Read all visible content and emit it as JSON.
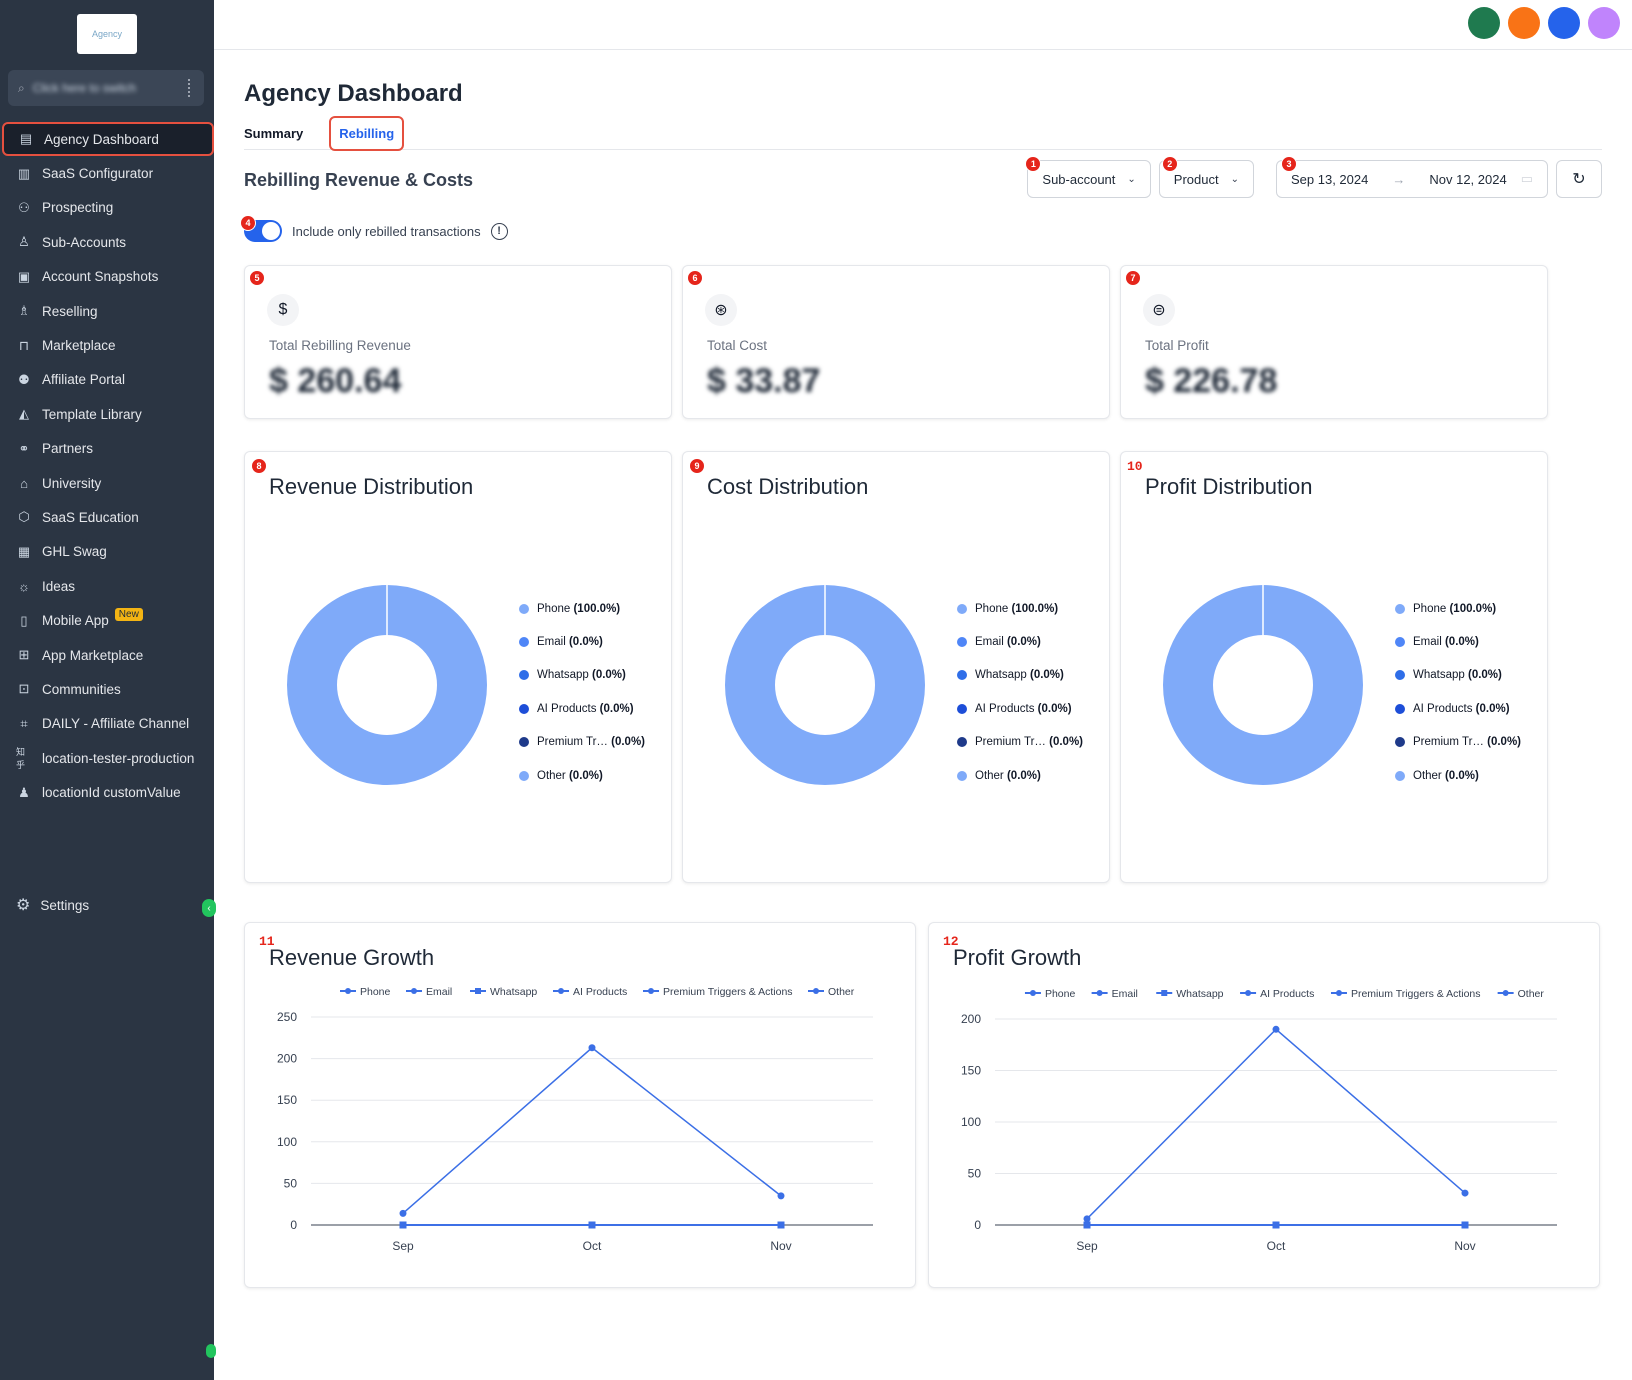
{
  "sidebar": {
    "logo_text": "Agency",
    "switcher_text": "Click here to switch",
    "items": [
      {
        "label": "Agency Dashboard",
        "icon": "dashboard-icon"
      },
      {
        "label": "SaaS Configurator",
        "icon": "bar-chart-icon"
      },
      {
        "label": "Prospecting",
        "icon": "users-search-icon"
      },
      {
        "label": "Sub-Accounts",
        "icon": "user-icon"
      },
      {
        "label": "Account Snapshots",
        "icon": "snapshot-icon"
      },
      {
        "label": "Reselling",
        "icon": "network-icon"
      },
      {
        "label": "Marketplace",
        "icon": "bag-icon"
      },
      {
        "label": "Affiliate Portal",
        "icon": "group-icon"
      },
      {
        "label": "Template Library",
        "icon": "shapes-icon"
      },
      {
        "label": "Partners",
        "icon": "handshake-icon"
      },
      {
        "label": "University",
        "icon": "graduation-cap-icon"
      },
      {
        "label": "SaaS Education",
        "icon": "cube-icon"
      },
      {
        "label": "GHL Swag",
        "icon": "store-icon"
      },
      {
        "label": "Ideas",
        "icon": "lightbulb-icon"
      },
      {
        "label": "Mobile App",
        "icon": "mobile-icon",
        "badge": "New"
      },
      {
        "label": "App Marketplace",
        "icon": "grid-icon"
      },
      {
        "label": "Communities",
        "icon": "community-icon"
      },
      {
        "label": "DAILY - Affiliate Channel",
        "icon": "frame-icon"
      },
      {
        "label": "location-tester-production",
        "icon": "text-icon",
        "icon_text": "知乎"
      },
      {
        "label": "locationId customValue",
        "icon": "user-gear-icon"
      }
    ],
    "settings_label": "Settings"
  },
  "header": {
    "page_title": "Agency Dashboard",
    "tabs": [
      {
        "label": "Summary"
      },
      {
        "label": "Rebilling"
      }
    ],
    "avatar_colors": [
      "#1f7a4f",
      "#f97316",
      "#2563eb",
      "#c084fc"
    ]
  },
  "section": {
    "title": "Rebilling Revenue & Costs",
    "filters": {
      "subaccount": "Sub-account",
      "product": "Product",
      "date_start": "Sep 13, 2024",
      "date_end": "Nov 12, 2024"
    },
    "toggle_label": "Include only rebilled transactions",
    "toggle_on": true
  },
  "markers": [
    "1",
    "2",
    "3",
    "4",
    "5",
    "6",
    "7",
    "8",
    "9",
    "10",
    "11",
    "12"
  ],
  "kpis": [
    {
      "label": "Total Rebilling Revenue",
      "value": "$ 260.64",
      "icon": "dollar-icon"
    },
    {
      "label": "Total Cost",
      "value": "$ 33.87",
      "icon": "coins-icon"
    },
    {
      "label": "Total Profit",
      "value": "$ 226.78",
      "icon": "hand-coins-icon"
    }
  ],
  "distributions": [
    {
      "title": "Revenue Distribution"
    },
    {
      "title": "Cost Distribution"
    },
    {
      "title": "Profit Distribution"
    }
  ],
  "legend": [
    {
      "name": "Phone",
      "pct": "(100.0%)",
      "color": "#7faaf9"
    },
    {
      "name": "Email",
      "pct": "(0.0%)",
      "color": "#4f86f7"
    },
    {
      "name": "Whatsapp",
      "pct": "(0.0%)",
      "color": "#2f6ee8"
    },
    {
      "name": "AI Products",
      "pct": "(0.0%)",
      "color": "#1d4ed8"
    },
    {
      "name": "Premium Tr…",
      "pct": "(0.0%)",
      "color": "#1e3a8a"
    },
    {
      "name": "Other",
      "pct": "(0.0%)",
      "color": "#7faaf9"
    }
  ],
  "chart_data": [
    {
      "type": "pie",
      "title": "Revenue Distribution",
      "categories": [
        "Phone",
        "Email",
        "Whatsapp",
        "AI Products",
        "Premium Tr…",
        "Other"
      ],
      "values": [
        100,
        0,
        0,
        0,
        0,
        0
      ]
    },
    {
      "type": "pie",
      "title": "Cost Distribution",
      "categories": [
        "Phone",
        "Email",
        "Whatsapp",
        "AI Products",
        "Premium Tr…",
        "Other"
      ],
      "values": [
        100,
        0,
        0,
        0,
        0,
        0
      ]
    },
    {
      "type": "pie",
      "title": "Profit Distribution",
      "categories": [
        "Phone",
        "Email",
        "Whatsapp",
        "AI Products",
        "Premium Tr…",
        "Other"
      ],
      "values": [
        100,
        0,
        0,
        0,
        0,
        0
      ]
    },
    {
      "type": "line",
      "title": "Revenue Growth",
      "categories": [
        "Sep",
        "Oct",
        "Nov"
      ],
      "yticks": [
        0,
        50,
        100,
        150,
        200,
        250
      ],
      "ylim": [
        0,
        250
      ],
      "legend": [
        "Phone",
        "Email",
        "Whatsapp",
        "AI Products",
        "Premium Triggers & Actions",
        "Other"
      ],
      "series": [
        {
          "name": "Phone",
          "values": [
            14,
            213,
            35
          ]
        },
        {
          "name": "Email",
          "values": [
            0,
            0,
            0
          ]
        },
        {
          "name": "Whatsapp",
          "values": [
            0,
            0,
            0
          ]
        },
        {
          "name": "AI Products",
          "values": [
            0,
            0,
            0
          ]
        },
        {
          "name": "Premium Triggers & Actions",
          "values": [
            0,
            0,
            0
          ]
        },
        {
          "name": "Other",
          "values": [
            0,
            0,
            0
          ]
        }
      ]
    },
    {
      "type": "line",
      "title": "Profit Growth",
      "categories": [
        "Sep",
        "Oct",
        "Nov"
      ],
      "yticks": [
        0,
        50,
        100,
        150,
        200
      ],
      "ylim": [
        0,
        200
      ],
      "legend": [
        "Phone",
        "Email",
        "Whatsapp",
        "AI Products",
        "Premium Triggers & Actions",
        "Other"
      ],
      "series": [
        {
          "name": "Phone",
          "values": [
            6,
            190,
            31
          ]
        },
        {
          "name": "Email",
          "values": [
            0,
            0,
            0
          ]
        },
        {
          "name": "Whatsapp",
          "values": [
            0,
            0,
            0
          ]
        },
        {
          "name": "AI Products",
          "values": [
            0,
            0,
            0
          ]
        },
        {
          "name": "Premium Triggers & Actions",
          "values": [
            0,
            0,
            0
          ]
        },
        {
          "name": "Other",
          "values": [
            0,
            0,
            0
          ]
        }
      ]
    }
  ]
}
